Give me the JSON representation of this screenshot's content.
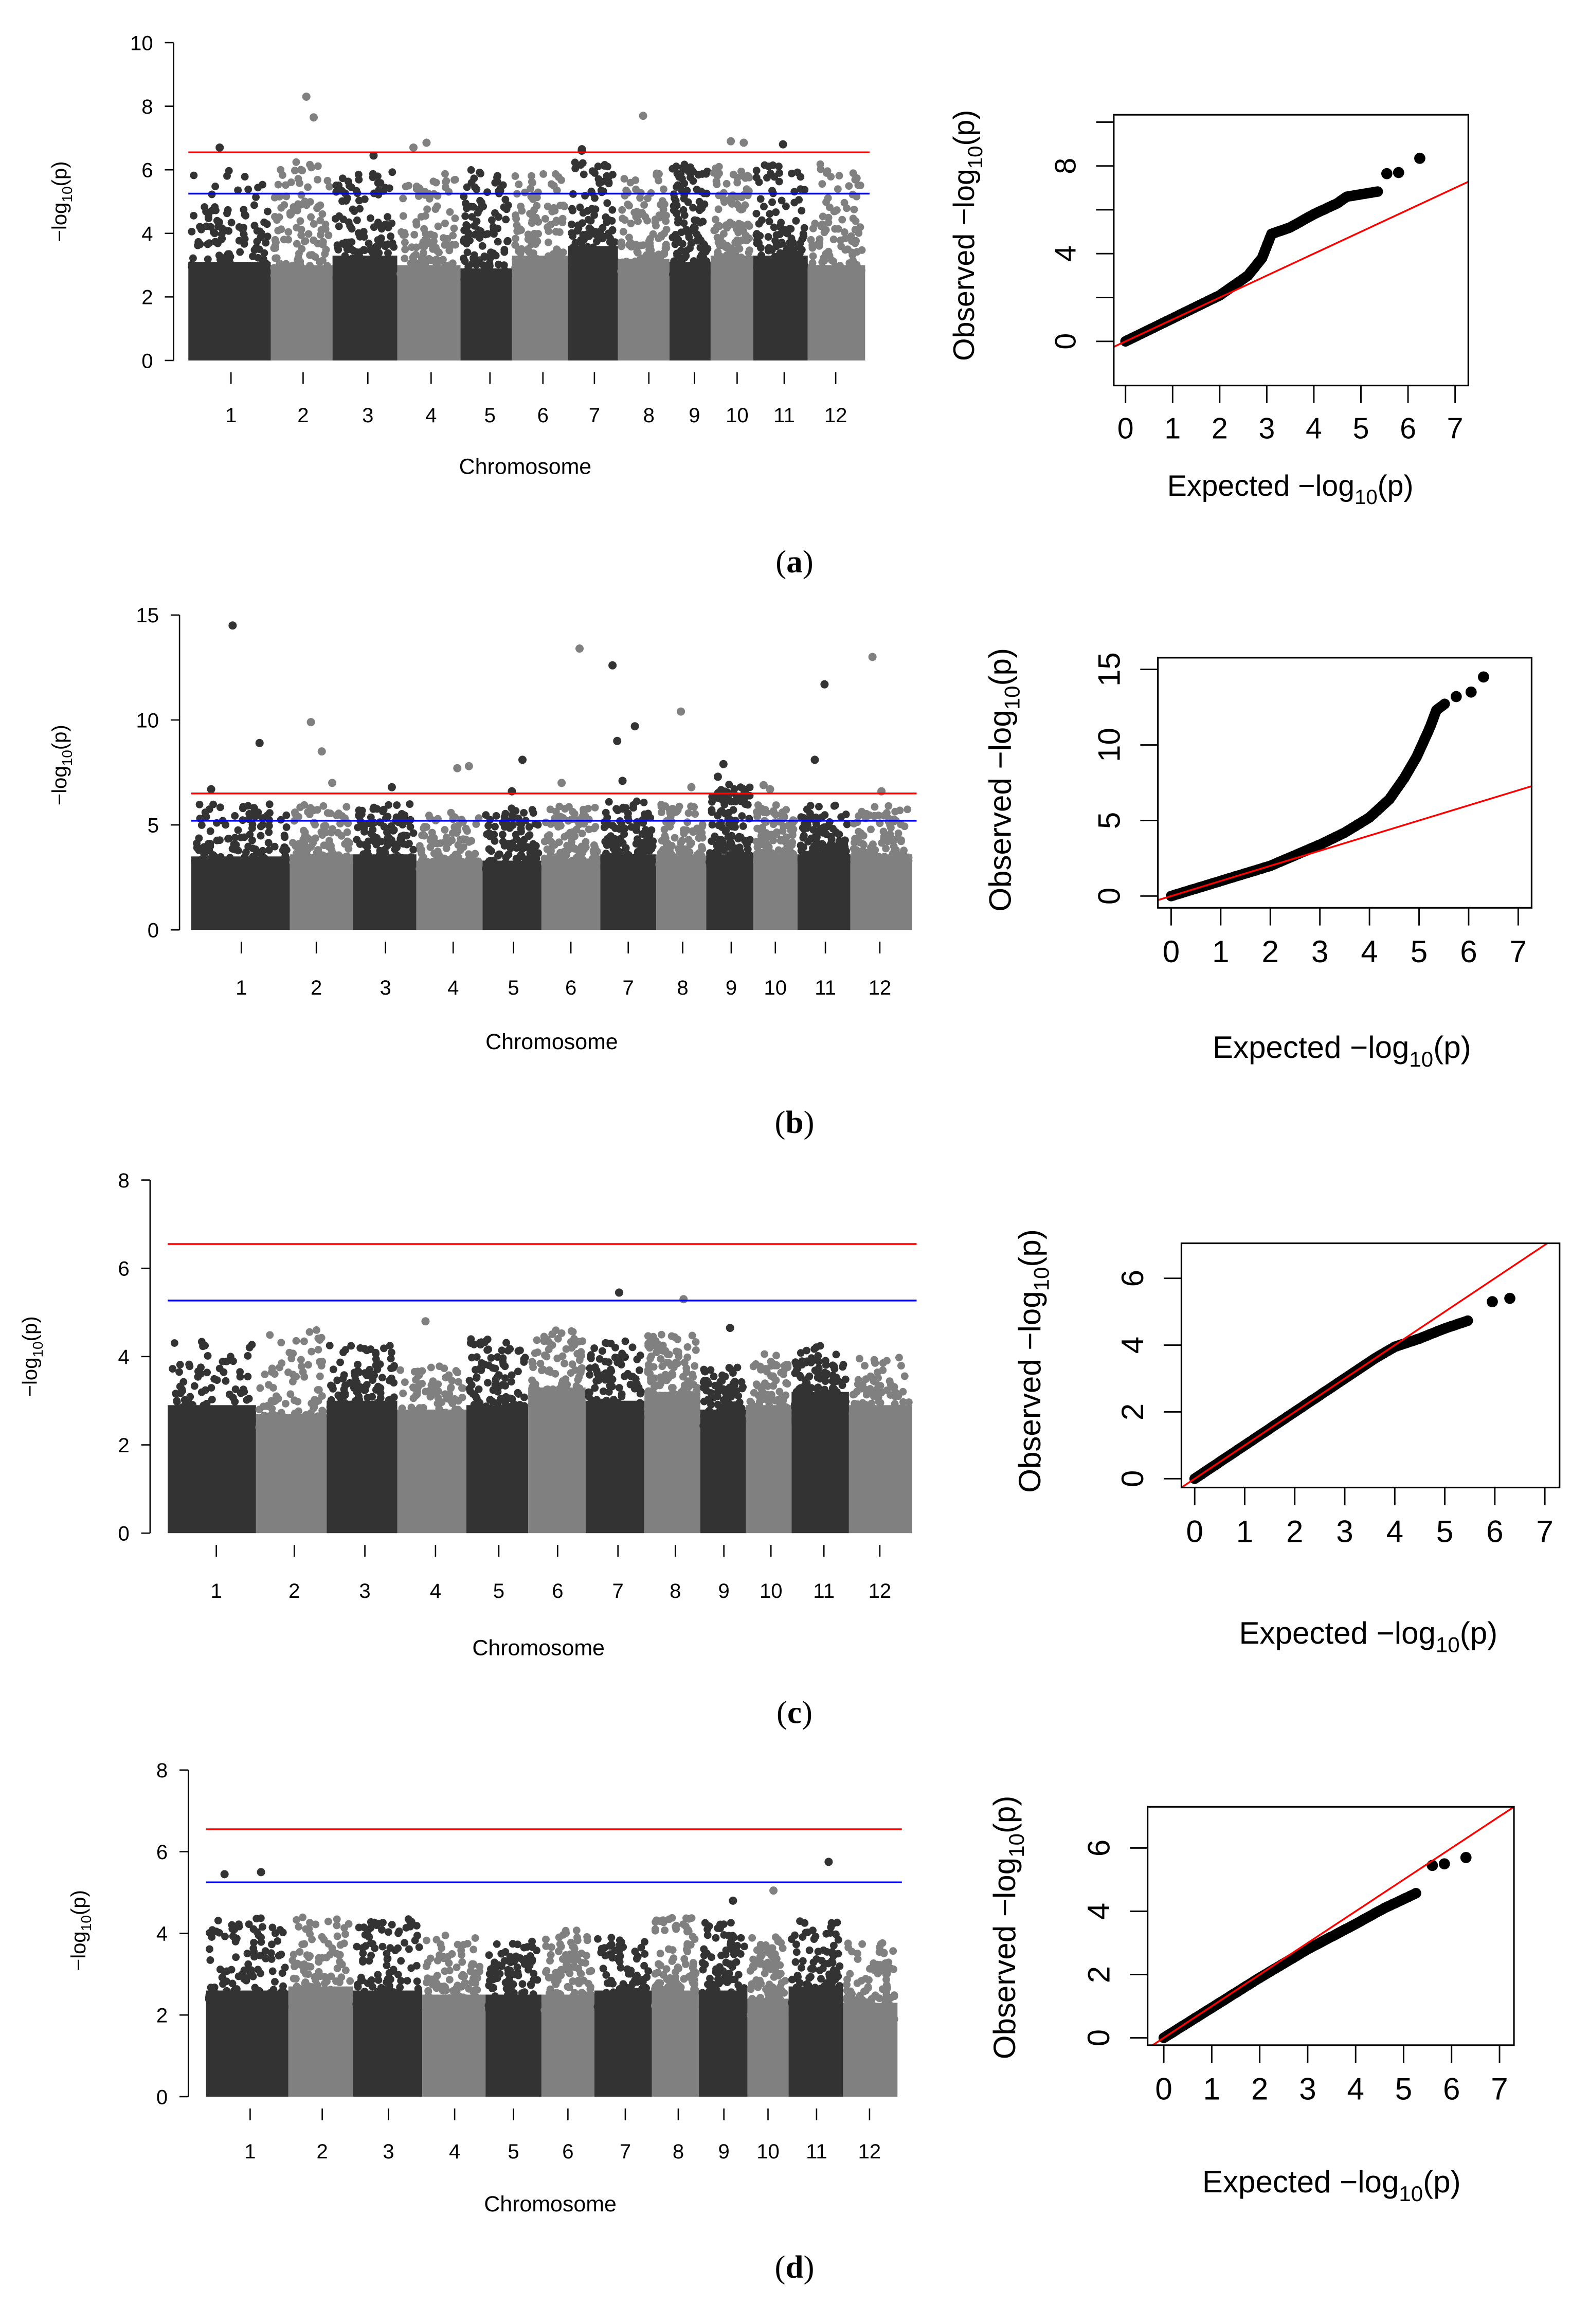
{
  "panel_labels": [
    {
      "open": "(",
      "letter": "a",
      "close": ")"
    },
    {
      "open": "(",
      "letter": "b",
      "close": ")"
    },
    {
      "open": "(",
      "letter": "c",
      "close": ")"
    },
    {
      "open": "(",
      "letter": "d",
      "close": ")"
    }
  ],
  "colors": {
    "dark": "#333333",
    "gray": "#808080",
    "red": "#ff0000",
    "blue": "#0000ff",
    "qq_points": "#000000"
  },
  "chart_data": [
    {
      "type": "scatter",
      "kind": "manhattan",
      "panel": "a",
      "xlabel": "Chromosome",
      "ylabel": {
        "prefix": "−log",
        "sub": "10",
        "suffix": "(p)"
      },
      "ylim": [
        0,
        10
      ],
      "yticks": [
        "0",
        "2",
        "4",
        "6",
        "8",
        "10"
      ],
      "categories": [
        "1",
        "2",
        "3",
        "4",
        "5",
        "6",
        "7",
        "8",
        "9",
        "10",
        "11",
        "12"
      ],
      "thresholds": {
        "red": 6.55,
        "blue": 5.25
      },
      "band_top": [
        3.1,
        3.0,
        3.3,
        3.0,
        2.9,
        3.3,
        3.6,
        3.2,
        3.1,
        3.3,
        3.3,
        3.0
      ],
      "chr_max": [
        6.0,
        6.3,
        6.0,
        5.9,
        6.0,
        5.9,
        6.3,
        6.0,
        6.2,
        6.1,
        6.3,
        6.2
      ],
      "peaks": [
        [
          1,
          6.7
        ],
        [
          2,
          7.65
        ],
        [
          2,
          8.3
        ],
        [
          3,
          6.45
        ],
        [
          4,
          6.7
        ],
        [
          4,
          6.85
        ],
        [
          7,
          6.65
        ],
        [
          7,
          6.6
        ],
        [
          8,
          7.7
        ],
        [
          10,
          6.85
        ],
        [
          10,
          6.9
        ],
        [
          11,
          6.8
        ]
      ]
    },
    {
      "type": "scatter",
      "kind": "qq",
      "panel": "a",
      "xlabel": {
        "prefix": "Expected  −log",
        "sub": "10",
        "suffix": "(p)"
      },
      "ylabel": {
        "prefix": "Observed  −log",
        "sub": "10",
        "suffix": "(p)"
      },
      "xlim": [
        0,
        7
      ],
      "ylim": [
        0,
        10
      ],
      "xticks": [
        "0",
        "1",
        "2",
        "3",
        "4",
        "5",
        "6",
        "7"
      ],
      "yticks": [
        0,
        2,
        4,
        6,
        8,
        10
      ],
      "ytick_labels": [
        "0",
        "4",
        "8"
      ],
      "curve": [
        [
          0,
          0
        ],
        [
          1,
          1.05
        ],
        [
          2,
          2.1
        ],
        [
          2.6,
          3.0
        ],
        [
          2.9,
          3.8
        ],
        [
          3.1,
          4.9
        ],
        [
          3.5,
          5.2
        ],
        [
          4,
          5.8
        ],
        [
          4.5,
          6.3
        ],
        [
          4.7,
          6.6
        ],
        [
          5.4,
          6.85
        ]
      ],
      "outliers": [
        [
          5.55,
          7.65
        ],
        [
          5.8,
          7.7
        ],
        [
          6.25,
          8.35
        ]
      ],
      "reference": "y = x"
    },
    {
      "type": "scatter",
      "kind": "manhattan",
      "panel": "b",
      "xlabel": "Chromosome",
      "ylabel": {
        "prefix": "−log",
        "sub": "10",
        "suffix": "(p)"
      },
      "ylim": [
        0,
        15
      ],
      "yticks": [
        "0",
        "5",
        "10",
        "15"
      ],
      "categories": [
        "1",
        "2",
        "3",
        "4",
        "5",
        "6",
        "7",
        "8",
        "9",
        "10",
        "11",
        "12"
      ],
      "thresholds": {
        "red": 6.5,
        "blue": 5.2
      },
      "band_top": [
        3.5,
        3.6,
        3.6,
        3.3,
        3.3,
        3.4,
        3.6,
        3.5,
        3.6,
        3.6,
        3.6,
        3.6
      ],
      "chr_max": [
        6.0,
        6.0,
        6.0,
        5.6,
        5.8,
        6.0,
        6.2,
        6.0,
        7.0,
        6.0,
        6.0,
        6.0
      ],
      "peaks": [
        [
          1,
          6.7
        ],
        [
          1,
          8.9
        ],
        [
          1,
          14.5
        ],
        [
          2,
          9.9
        ],
        [
          2,
          8.5
        ],
        [
          2,
          7.0
        ],
        [
          3,
          6.8
        ],
        [
          4,
          7.8
        ],
        [
          4,
          7.7
        ],
        [
          5,
          6.6
        ],
        [
          5,
          8.1
        ],
        [
          6,
          13.4
        ],
        [
          6,
          7.0
        ],
        [
          7,
          7.1
        ],
        [
          7,
          9.7
        ],
        [
          7,
          9.0
        ],
        [
          7,
          12.6
        ],
        [
          8,
          10.4
        ],
        [
          8,
          6.8
        ],
        [
          9,
          7.3
        ],
        [
          9,
          7.9
        ],
        [
          10,
          6.7
        ],
        [
          10,
          6.9
        ],
        [
          11,
          11.7
        ],
        [
          11,
          8.1
        ],
        [
          12,
          6.6
        ],
        [
          12,
          13.0
        ]
      ]
    },
    {
      "type": "scatter",
      "kind": "qq",
      "panel": "b",
      "xlabel": {
        "prefix": "Expected  −log",
        "sub": "10",
        "suffix": "(p)"
      },
      "ylabel": {
        "prefix": "Observed  −log",
        "sub": "10",
        "suffix": "(p)"
      },
      "xlim": [
        0,
        7
      ],
      "ylim": [
        0,
        15
      ],
      "xticks": [
        "0",
        "1",
        "2",
        "3",
        "4",
        "5",
        "6",
        "7"
      ],
      "yticks": [
        0,
        5,
        10,
        15
      ],
      "ytick_labels": [
        "0",
        "5",
        "10",
        "15"
      ],
      "curve": [
        [
          0,
          0
        ],
        [
          1,
          1.0
        ],
        [
          2,
          2.0
        ],
        [
          2.5,
          2.7
        ],
        [
          3,
          3.4
        ],
        [
          3.5,
          4.2
        ],
        [
          4,
          5.2
        ],
        [
          4.4,
          6.4
        ],
        [
          4.7,
          7.8
        ],
        [
          4.95,
          9.2
        ],
        [
          5.2,
          11.0
        ],
        [
          5.35,
          12.3
        ],
        [
          5.55,
          12.8
        ]
      ],
      "outliers": [
        [
          5.75,
          13.2
        ],
        [
          6.05,
          13.5
        ],
        [
          6.3,
          14.5
        ]
      ],
      "reference": "y = x"
    },
    {
      "type": "scatter",
      "kind": "manhattan",
      "panel": "c",
      "xlabel": "Chromosome",
      "ylabel": {
        "prefix": "−log",
        "sub": "10",
        "suffix": "(p)"
      },
      "ylim": [
        0,
        8
      ],
      "yticks": [
        "0",
        "2",
        "4",
        "6",
        "8"
      ],
      "categories": [
        "1",
        "2",
        "3",
        "4",
        "5",
        "6",
        "7",
        "8",
        "9",
        "10",
        "11",
        "12"
      ],
      "thresholds": {
        "red": 6.55,
        "blue": 5.27
      },
      "band_top": [
        2.9,
        2.7,
        3.0,
        2.8,
        2.9,
        3.3,
        3.0,
        3.2,
        2.8,
        2.9,
        3.2,
        2.9
      ],
      "chr_max": [
        4.4,
        4.6,
        4.3,
        3.8,
        4.4,
        4.6,
        4.4,
        4.5,
        3.8,
        4.1,
        4.3,
        4.0
      ],
      "peaks": [
        [
          4,
          4.8
        ],
        [
          7,
          5.45
        ],
        [
          8,
          5.3
        ],
        [
          9,
          4.65
        ]
      ]
    },
    {
      "type": "scatter",
      "kind": "qq",
      "panel": "c",
      "xlabel": {
        "prefix": "Expected  −log",
        "sub": "10",
        "suffix": "(p)"
      },
      "ylabel": {
        "prefix": "Observed  −log",
        "sub": "10",
        "suffix": "(p)"
      },
      "xlim": [
        0,
        7
      ],
      "ylim": [
        0,
        6
      ],
      "xticks": [
        "0",
        "1",
        "2",
        "3",
        "4",
        "5",
        "6",
        "7"
      ],
      "yticks": [
        0,
        2,
        4,
        6
      ],
      "ytick_labels": [
        "0",
        "2",
        "4",
        "6"
      ],
      "curve": [
        [
          0,
          0
        ],
        [
          1,
          1.0
        ],
        [
          2,
          2.0
        ],
        [
          3,
          3.0
        ],
        [
          3.6,
          3.6
        ],
        [
          4,
          3.95
        ],
        [
          4.5,
          4.2
        ],
        [
          5,
          4.5
        ],
        [
          5.5,
          4.75
        ]
      ],
      "outliers": [
        [
          5.95,
          5.3
        ],
        [
          6.3,
          5.4
        ]
      ],
      "reference": "y = x"
    },
    {
      "type": "scatter",
      "kind": "manhattan",
      "panel": "d",
      "xlabel": "Chromosome",
      "ylabel": {
        "prefix": "−log",
        "sub": "10",
        "suffix": "(p)"
      },
      "ylim": [
        0,
        8
      ],
      "yticks": [
        "0",
        "2",
        "4",
        "6",
        "8"
      ],
      "categories": [
        "1",
        "2",
        "3",
        "4",
        "5",
        "6",
        "7",
        "8",
        "9",
        "10",
        "11",
        "12"
      ],
      "thresholds": {
        "red": 6.55,
        "blue": 5.25
      },
      "band_top": [
        2.6,
        2.7,
        2.6,
        2.5,
        2.5,
        2.5,
        2.6,
        2.6,
        2.6,
        2.4,
        2.7,
        2.3
      ],
      "chr_max": [
        4.4,
        4.5,
        4.4,
        4.0,
        3.9,
        4.1,
        3.9,
        4.4,
        4.3,
        4.0,
        4.3,
        3.8
      ],
      "peaks": [
        [
          1,
          5.5
        ],
        [
          1,
          5.45
        ],
        [
          9,
          4.8
        ],
        [
          10,
          5.05
        ],
        [
          11,
          5.75
        ]
      ]
    },
    {
      "type": "scatter",
      "kind": "qq",
      "panel": "d",
      "xlabel": {
        "prefix": "Expected  −log",
        "sub": "10",
        "suffix": "(p)"
      },
      "ylabel": {
        "prefix": "Observed  −log",
        "sub": "10",
        "suffix": "(p)"
      },
      "xlim": [
        0,
        7
      ],
      "ylim": [
        0,
        6
      ],
      "xticks": [
        "0",
        "1",
        "2",
        "3",
        "4",
        "5",
        "6",
        "7"
      ],
      "yticks": [
        0,
        2,
        4,
        6
      ],
      "ytick_labels": [
        "0",
        "2",
        "4",
        "6"
      ],
      "curve": [
        [
          0,
          0
        ],
        [
          1,
          0.95
        ],
        [
          2,
          1.9
        ],
        [
          3,
          2.8
        ],
        [
          4,
          3.6
        ],
        [
          4.6,
          4.1
        ],
        [
          5.3,
          4.6
        ]
      ],
      "outliers": [
        [
          5.6,
          5.45
        ],
        [
          5.85,
          5.5
        ],
        [
          6.3,
          5.7
        ]
      ],
      "reference": "y = x"
    }
  ]
}
